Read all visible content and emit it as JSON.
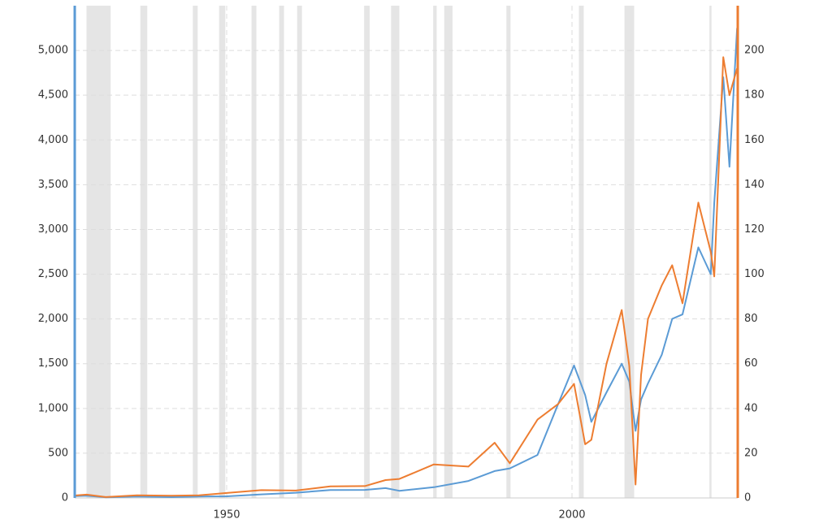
{
  "chart_data": {
    "type": "line",
    "xlim": [
      1928,
      2024
    ],
    "xticks": [
      1950,
      2000
    ],
    "ylim": [
      0,
      5500
    ],
    "yticks": [
      0,
      500,
      {
        "value": 1000,
        "label": "1,000"
      },
      {
        "value": 1500,
        "label": "1,500"
      },
      {
        "value": 2000,
        "label": "2,000"
      },
      {
        "value": 2500,
        "label": "2,500"
      },
      {
        "value": 3000,
        "label": "3,000"
      },
      {
        "value": 3500,
        "label": "3,500"
      },
      {
        "value": 4000,
        "label": "4,000"
      },
      {
        "value": 4500,
        "label": "4,500"
      },
      {
        "value": 5000,
        "label": "5,000"
      }
    ],
    "y2lim": [
      0,
      220
    ],
    "y2ticks": [
      0,
      20,
      40,
      60,
      80,
      100,
      120,
      140,
      160,
      180,
      200
    ],
    "grid": true,
    "shaded_x_ranges": [
      [
        1929.7,
        1933.2
      ],
      [
        1937.5,
        1938.5
      ],
      [
        1945.1,
        1945.8
      ],
      [
        1948.9,
        1949.8
      ],
      [
        1953.6,
        1954.3
      ],
      [
        1957.6,
        1958.3
      ],
      [
        1960.2,
        1960.9
      ],
      [
        1969.9,
        1970.7
      ],
      [
        1973.8,
        1975.0
      ],
      [
        1979.9,
        1980.4
      ],
      [
        1981.5,
        1982.7
      ],
      [
        1990.5,
        1991.1
      ],
      [
        2001.0,
        2001.7
      ],
      [
        2007.6,
        2009.0
      ],
      [
        2019.9,
        2020.2
      ]
    ],
    "shade_color": "#e5e5e5",
    "x": [
      1928,
      1929.7,
      1932.5,
      1937,
      1942,
      1946,
      1950,
      1955,
      1960,
      1965,
      1970,
      1973,
      1975,
      1980,
      1985,
      1988.8,
      1991,
      1995,
      1998,
      2000.3,
      2001.9,
      2002.8,
      2005,
      2007.2,
      2008.3,
      2009.2,
      2010,
      2011,
      2013,
      2014.5,
      2016,
      2018.3,
      2020.1,
      2020.6,
      2021.9,
      2022.8,
      2023.9
    ],
    "series": [
      {
        "color": "#5b9bd5",
        "values": [
          20,
          25,
          7,
          15,
          9,
          16,
          18,
          40,
          58,
          88,
          90,
          110,
          80,
          120,
          190,
          300,
          330,
          480,
          1050,
          1480,
          1150,
          850,
          1180,
          1500,
          1300,
          750,
          1100,
          1280,
          1600,
          2000,
          2050,
          2800,
          2500,
          3300,
          4700,
          3700,
          5250
        ]
      },
      {
        "color": "#ed7d31",
        "axis": "y2",
        "values": [
          1.1,
          1.5,
          0.4,
          1.2,
          1,
          1.2,
          2.2,
          3.5,
          3.3,
          5.2,
          5.3,
          8,
          8.5,
          15,
          14,
          24.7,
          15.5,
          35,
          42,
          51,
          24,
          26,
          60,
          84,
          59,
          6,
          55,
          80,
          95,
          104,
          87,
          132,
          110,
          99,
          197,
          180,
          192
        ]
      }
    ]
  }
}
